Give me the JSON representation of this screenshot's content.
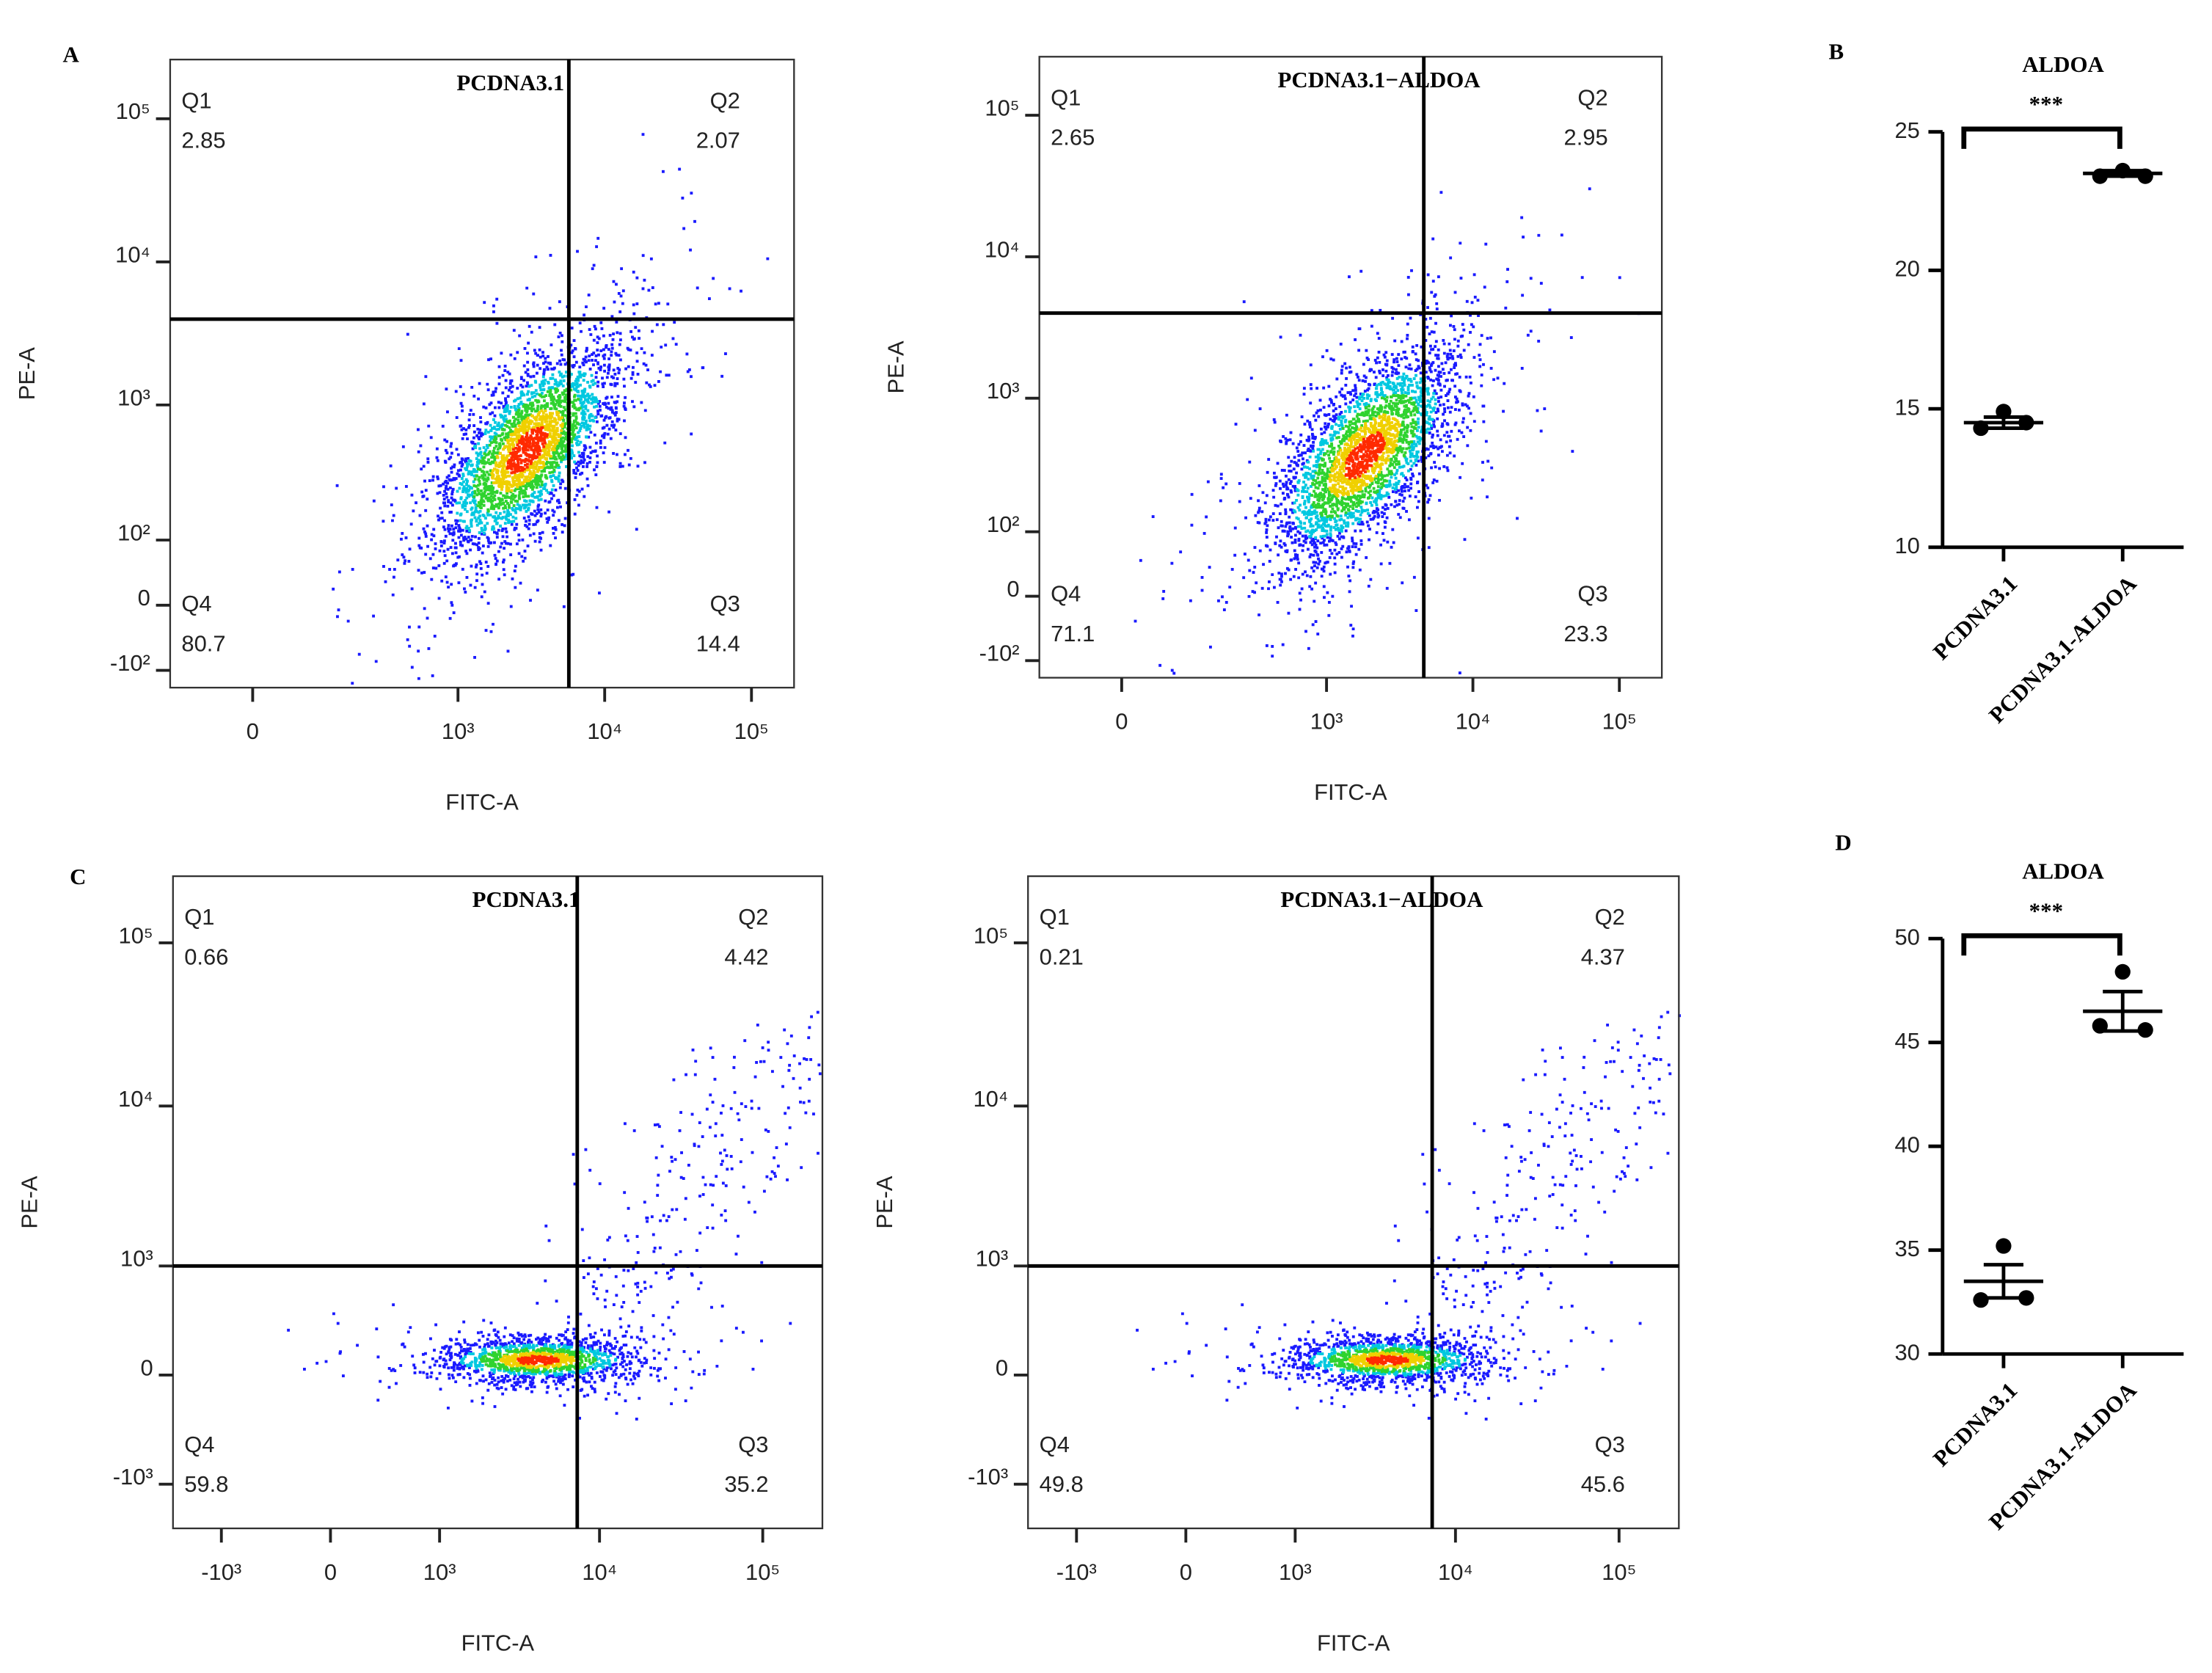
{
  "chart_data": [
    {
      "type": "flow",
      "panel": "A",
      "title": "PCDNA3.1",
      "xlabel": "FITC-A",
      "ylabel": "PE-A",
      "xscale": "biexponential",
      "yscale": "biexponential",
      "xlim": [
        -135,
        195000
      ],
      "ylim": [
        -140,
        259000
      ],
      "xticks": [
        0,
        {
          "value": 1000,
          "label": "10³"
        },
        {
          "value": 10000,
          "label": "10⁴"
        },
        {
          "value": 100000,
          "label": "10⁵"
        }
      ],
      "yticks": [
        {
          "value": -100,
          "label": "-10²"
        },
        0,
        {
          "value": 100,
          "label": "10²"
        },
        {
          "value": 1000,
          "label": "10³"
        },
        {
          "value": 10000,
          "label": "10⁴"
        },
        {
          "value": 100000,
          "label": "10⁵"
        }
      ],
      "gate_x": 5700,
      "gate_y": 3980,
      "quadrants": [
        {
          "name": "Q1",
          "value": 2.85
        },
        {
          "name": "Q2",
          "value": 2.07
        },
        {
          "name": "Q3",
          "value": 14.4
        },
        {
          "name": "Q4",
          "value": 80.7
        }
      ]
    },
    {
      "type": "flow",
      "title": "PCDNA3.1−ALDOA",
      "xlabel": "FITC-A",
      "ylabel": "PE-A",
      "xscale": "biexponential",
      "yscale": "biexponential",
      "xlim": [
        -135,
        195000
      ],
      "ylim": [
        -140,
        259000
      ],
      "xticks": [
        0,
        {
          "value": 1000,
          "label": "10³"
        },
        {
          "value": 10000,
          "label": "10⁴"
        },
        {
          "value": 100000,
          "label": "10⁵"
        }
      ],
      "yticks": [
        {
          "value": -100,
          "label": "-10²"
        },
        0,
        {
          "value": 100,
          "label": "10²"
        },
        {
          "value": 1000,
          "label": "10³"
        },
        {
          "value": 10000,
          "label": "10⁴"
        },
        {
          "value": 100000,
          "label": "10⁵"
        }
      ],
      "gate_x": 4620,
      "gate_y": 4000,
      "quadrants": [
        {
          "name": "Q1",
          "value": 2.65
        },
        {
          "name": "Q2",
          "value": 2.95
        },
        {
          "name": "Q3",
          "value": 23.3
        },
        {
          "name": "Q4",
          "value": 71.1
        }
      ]
    },
    {
      "type": "dot",
      "panel": "B",
      "title": "ALDOA",
      "annotation": "***",
      "categories": [
        "PCDNA3.1",
        "PCDNA3.1-ALDOA"
      ],
      "points": [
        [
          14.9,
          14.3,
          14.5
        ],
        [
          23.6,
          23.4,
          23.4
        ]
      ],
      "mean": [
        14.5,
        23.5
      ],
      "sem": [
        0.2,
        0.1
      ],
      "ylim": [
        10,
        25
      ],
      "yticks": [
        10,
        15,
        20,
        25
      ]
    },
    {
      "type": "flow",
      "panel": "C",
      "title": "PCDNA3.1",
      "xlabel": "FITC-A",
      "ylabel": "PE-A",
      "xscale": "biexponential",
      "yscale": "biexponential",
      "xlim": [
        -2050,
        232000
      ],
      "ylim": [
        -1930,
        256000
      ],
      "xticks": [
        {
          "value": -1000,
          "label": "-10³"
        },
        0,
        {
          "value": 1000,
          "label": "10³"
        },
        {
          "value": 10000,
          "label": "10⁴"
        },
        {
          "value": 100000,
          "label": "10⁵"
        }
      ],
      "yticks": [
        {
          "value": -1000,
          "label": "-10³"
        },
        0,
        {
          "value": 1000,
          "label": "10³"
        },
        {
          "value": 10000,
          "label": "10⁴"
        },
        {
          "value": 100000,
          "label": "10⁵"
        }
      ],
      "gate_x": 7300,
      "gate_y": 1000,
      "quadrants": [
        {
          "name": "Q1",
          "value": 0.66
        },
        {
          "name": "Q2",
          "value": 4.42
        },
        {
          "name": "Q3",
          "value": 35.2
        },
        {
          "name": "Q4",
          "value": 59.8
        }
      ]
    },
    {
      "type": "flow",
      "title": "PCDNA3.1−ALDOA",
      "xlabel": "FITC-A",
      "ylabel": "PE-A",
      "xscale": "biexponential",
      "yscale": "biexponential",
      "xlim": [
        -2050,
        232000
      ],
      "ylim": [
        -1930,
        256000
      ],
      "xticks": [
        {
          "value": -1000,
          "label": "-10³"
        },
        0,
        {
          "value": 1000,
          "label": "10³"
        },
        {
          "value": 10000,
          "label": "10⁴"
        },
        {
          "value": 100000,
          "label": "10⁵"
        }
      ],
      "yticks": [
        {
          "value": -1000,
          "label": "-10³"
        },
        0,
        {
          "value": 1000,
          "label": "10³"
        },
        {
          "value": 10000,
          "label": "10⁴"
        },
        {
          "value": 100000,
          "label": "10⁵"
        }
      ],
      "gate_x": 7200,
      "gate_y": 1000,
      "quadrants": [
        {
          "name": "Q1",
          "value": 0.21
        },
        {
          "name": "Q2",
          "value": 4.37
        },
        {
          "name": "Q3",
          "value": 45.6
        },
        {
          "name": "Q4",
          "value": 49.8
        }
      ]
    },
    {
      "type": "dot",
      "panel": "D",
      "title": "ALDOA",
      "annotation": "***",
      "categories": [
        "PCDNA3.1",
        "PCDNA3.1-ALDOA"
      ],
      "points": [
        [
          35.2,
          32.6,
          32.7
        ],
        [
          48.4,
          45.8,
          45.6
        ]
      ],
      "mean": [
        33.5,
        46.5
      ],
      "sem": [
        0.8,
        0.95
      ],
      "ylim": [
        30,
        50
      ],
      "yticks": [
        30,
        35,
        40,
        45,
        50
      ]
    }
  ]
}
